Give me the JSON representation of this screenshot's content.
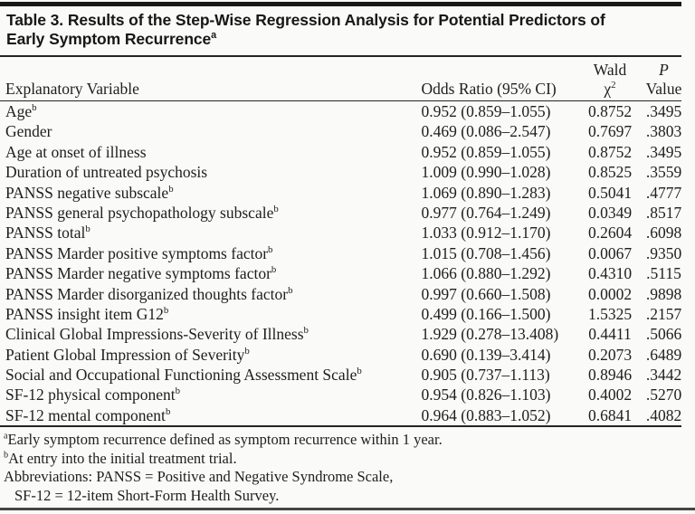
{
  "table": {
    "title_line1": "Table 3. Results of the Step-Wise Regression Analysis for Potential Predictors of",
    "title_line2": "Early Symptom Recurrence",
    "title_footnote_marker": "a",
    "columns": {
      "explanatory": "Explanatory Variable",
      "odds_ratio": "Odds Ratio (95% CI)",
      "wald_line1": "Wald",
      "wald_chi": "χ",
      "wald_chi_sup": "2",
      "p_line1": "P",
      "p_line2": "Value"
    },
    "rows": [
      {
        "label": "Age",
        "sup": "b",
        "or": "0.952 (0.859–1.055)",
        "wald": "0.8752",
        "p": ".3495"
      },
      {
        "label": "Gender",
        "sup": "",
        "or": "0.469 (0.086–2.547)",
        "wald": "0.7697",
        "p": ".3803"
      },
      {
        "label": "Age at onset of illness",
        "sup": "",
        "or": "0.952 (0.859–1.055)",
        "wald": "0.8752",
        "p": ".3495"
      },
      {
        "label": "Duration of untreated psychosis",
        "sup": "",
        "or": "1.009 (0.990–1.028)",
        "wald": "0.8525",
        "p": ".3559"
      },
      {
        "label": "PANSS negative subscale",
        "sup": "b",
        "or": "1.069 (0.890–1.283)",
        "wald": "0.5041",
        "p": ".4777"
      },
      {
        "label": "PANSS general psychopathology subscale",
        "sup": "b",
        "or": "0.977 (0.764–1.249)",
        "wald": "0.0349",
        "p": ".8517"
      },
      {
        "label": "PANSS total",
        "sup": "b",
        "or": "1.033 (0.912–1.170)",
        "wald": "0.2604",
        "p": ".6098"
      },
      {
        "label": "PANSS Marder positive symptoms factor",
        "sup": "b",
        "or": "1.015 (0.708–1.456)",
        "wald": "0.0067",
        "p": ".9350"
      },
      {
        "label": "PANSS Marder negative symptoms factor",
        "sup": "b",
        "or": "1.066 (0.880–1.292)",
        "wald": "0.4310",
        "p": ".5115"
      },
      {
        "label": "PANSS Marder disorganized thoughts factor",
        "sup": "b",
        "or": "0.997 (0.660–1.508)",
        "wald": "0.0002",
        "p": ".9898"
      },
      {
        "label": "PANSS insight item G12",
        "sup": "b",
        "or": "0.499 (0.166–1.500)",
        "wald": "1.5325",
        "p": ".2157"
      },
      {
        "label": "Clinical Global Impressions-Severity of Illness",
        "sup": "b",
        "or": "1.929 (0.278–13.408)",
        "wald": "0.4411",
        "p": ".5066"
      },
      {
        "label": "Patient Global Impression of Severity",
        "sup": "b",
        "or": "0.690 (0.139–3.414)",
        "wald": "0.2073",
        "p": ".6489"
      },
      {
        "label": "Social and Occupational Functioning Assessment Scale",
        "sup": "b",
        "or": "0.905 (0.737–1.113)",
        "wald": "0.8946",
        "p": ".3442"
      },
      {
        "label": "SF-12 physical component",
        "sup": "b",
        "or": "0.954 (0.826–1.103)",
        "wald": "0.4002",
        "p": ".5270"
      },
      {
        "label": "SF-12 mental component",
        "sup": "b",
        "or": "0.964 (0.883–1.052)",
        "wald": "0.6841",
        "p": ".4082"
      }
    ],
    "footnotes": [
      {
        "sup": "a",
        "text": "Early symptom recurrence defined as symptom recurrence within 1 year."
      },
      {
        "sup": "b",
        "text": "At entry into the initial treatment trial."
      },
      {
        "sup": "",
        "text": "Abbreviations: PANSS = Positive and Negative Syndrome Scale,"
      },
      {
        "sup": "",
        "text": "SF-12 = 12-item Short-Form Health Survey."
      }
    ]
  },
  "colors": {
    "background": "#fafaf8",
    "text": "#1e1e1e",
    "rule": "#242424"
  }
}
